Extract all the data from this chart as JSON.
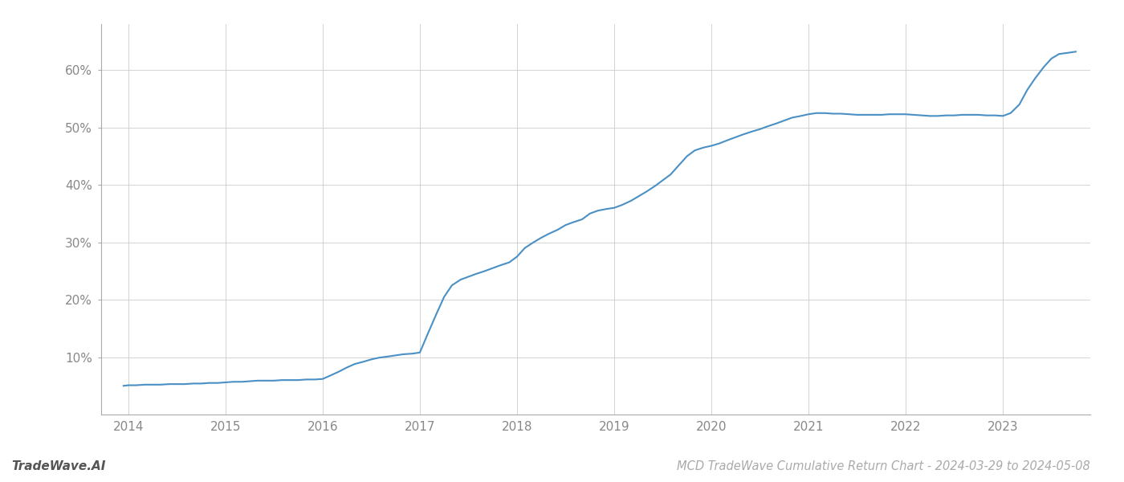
{
  "title": "MCD TradeWave Cumulative Return Chart - 2024-03-29 to 2024-05-08",
  "watermark": "TradeWave.AI",
  "line_color": "#4a90c4",
  "line_width": 1.5,
  "background_color": "#ffffff",
  "grid_color": "#cccccc",
  "x_values": [
    2013.95,
    2014.0,
    2014.08,
    2014.17,
    2014.25,
    2014.33,
    2014.42,
    2014.5,
    2014.58,
    2014.67,
    2014.75,
    2014.83,
    2014.92,
    2015.0,
    2015.08,
    2015.17,
    2015.25,
    2015.33,
    2015.42,
    2015.5,
    2015.58,
    2015.67,
    2015.75,
    2015.83,
    2015.92,
    2016.0,
    2016.08,
    2016.17,
    2016.25,
    2016.33,
    2016.42,
    2016.5,
    2016.58,
    2016.67,
    2016.75,
    2016.83,
    2016.92,
    2017.0,
    2017.08,
    2017.17,
    2017.25,
    2017.33,
    2017.42,
    2017.5,
    2017.58,
    2017.67,
    2017.75,
    2017.83,
    2017.92,
    2018.0,
    2018.08,
    2018.17,
    2018.25,
    2018.33,
    2018.42,
    2018.5,
    2018.58,
    2018.67,
    2018.75,
    2018.83,
    2018.92,
    2019.0,
    2019.08,
    2019.17,
    2019.25,
    2019.33,
    2019.42,
    2019.5,
    2019.58,
    2019.67,
    2019.75,
    2019.83,
    2019.92,
    2020.0,
    2020.08,
    2020.17,
    2020.25,
    2020.33,
    2020.42,
    2020.5,
    2020.58,
    2020.67,
    2020.75,
    2020.83,
    2020.92,
    2021.0,
    2021.08,
    2021.17,
    2021.25,
    2021.33,
    2021.42,
    2021.5,
    2021.58,
    2021.67,
    2021.75,
    2021.83,
    2021.92,
    2022.0,
    2022.08,
    2022.17,
    2022.25,
    2022.33,
    2022.42,
    2022.5,
    2022.58,
    2022.67,
    2022.75,
    2022.83,
    2022.92,
    2023.0,
    2023.08,
    2023.17,
    2023.25,
    2023.33,
    2023.42,
    2023.5,
    2023.58,
    2023.67,
    2023.75
  ],
  "y_values": [
    5.0,
    5.1,
    5.1,
    5.2,
    5.2,
    5.2,
    5.3,
    5.3,
    5.3,
    5.4,
    5.4,
    5.5,
    5.5,
    5.6,
    5.7,
    5.7,
    5.8,
    5.9,
    5.9,
    5.9,
    6.0,
    6.0,
    6.0,
    6.1,
    6.1,
    6.2,
    6.8,
    7.5,
    8.2,
    8.8,
    9.2,
    9.6,
    9.9,
    10.1,
    10.3,
    10.5,
    10.6,
    10.8,
    14.0,
    17.5,
    20.5,
    22.5,
    23.5,
    24.0,
    24.5,
    25.0,
    25.5,
    26.0,
    26.5,
    27.5,
    29.0,
    30.0,
    30.8,
    31.5,
    32.2,
    33.0,
    33.5,
    34.0,
    35.0,
    35.5,
    35.8,
    36.0,
    36.5,
    37.2,
    38.0,
    38.8,
    39.8,
    40.8,
    41.8,
    43.5,
    45.0,
    46.0,
    46.5,
    46.8,
    47.2,
    47.8,
    48.3,
    48.8,
    49.3,
    49.7,
    50.2,
    50.7,
    51.2,
    51.7,
    52.0,
    52.3,
    52.5,
    52.5,
    52.4,
    52.4,
    52.3,
    52.2,
    52.2,
    52.2,
    52.2,
    52.3,
    52.3,
    52.3,
    52.2,
    52.1,
    52.0,
    52.0,
    52.1,
    52.1,
    52.2,
    52.2,
    52.2,
    52.1,
    52.1,
    52.0,
    52.5,
    54.0,
    56.5,
    58.5,
    60.5,
    62.0,
    62.8,
    63.0,
    63.2
  ],
  "x_ticks": [
    2014,
    2015,
    2016,
    2017,
    2018,
    2019,
    2020,
    2021,
    2022,
    2023
  ],
  "x_tick_labels": [
    "2014",
    "2015",
    "2016",
    "2017",
    "2018",
    "2019",
    "2020",
    "2021",
    "2022",
    "2023"
  ],
  "y_ticks": [
    10,
    20,
    30,
    40,
    50,
    60
  ],
  "y_tick_labels": [
    "10%",
    "20%",
    "30%",
    "40%",
    "50%",
    "60%"
  ],
  "xlim": [
    2013.72,
    2023.9
  ],
  "ylim": [
    0,
    68
  ],
  "spine_color": "#aaaaaa",
  "tick_label_color": "#888888",
  "bottom_text_color": "#aaaaaa",
  "watermark_color": "#555555",
  "title_fontsize": 10.5,
  "tick_fontsize": 11,
  "watermark_fontsize": 11
}
